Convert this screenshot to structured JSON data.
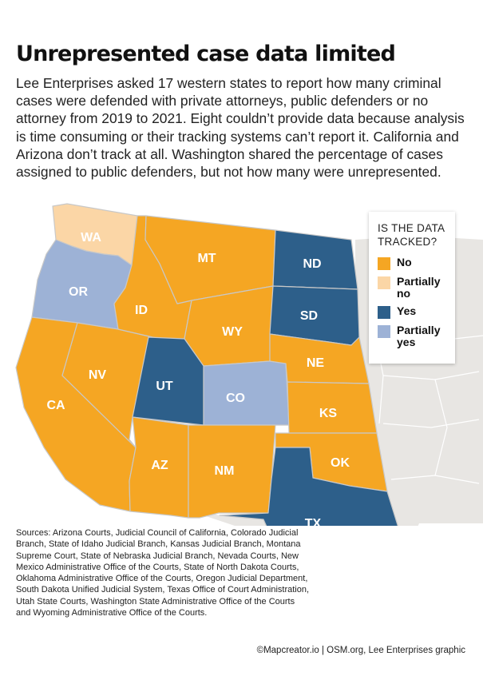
{
  "title": "Unrepresented case data limited",
  "intro": "Lee Enterprises asked 17 western states to report how many criminal cases were defended with private attorneys, public defenders or no attorney from 2019 to 2021. Eight couldn’t provide data because analysis is time consuming or their tracking systems can’t report it. California and Arizona don’t track at all. Washington shared the percentage of cases assigned to public defenders, but not how many were unrepresented.",
  "legend": {
    "title": "IS THE DATA TRACKED?",
    "items": [
      {
        "key": "no",
        "label": "No",
        "color": "#f5a623"
      },
      {
        "key": "partially_no",
        "label": "Partially no",
        "color": "#fbd6a6"
      },
      {
        "key": "yes",
        "label": "Yes",
        "color": "#2d5f8a"
      },
      {
        "key": "partially_yes",
        "label": "Partially yes",
        "color": "#9db2d6"
      }
    ]
  },
  "states": [
    {
      "abbr": "WA",
      "category": "partially_no"
    },
    {
      "abbr": "OR",
      "category": "partially_yes"
    },
    {
      "abbr": "CA",
      "category": "no"
    },
    {
      "abbr": "NV",
      "category": "no"
    },
    {
      "abbr": "ID",
      "category": "no"
    },
    {
      "abbr": "MT",
      "category": "no"
    },
    {
      "abbr": "WY",
      "category": "no"
    },
    {
      "abbr": "UT",
      "category": "yes"
    },
    {
      "abbr": "CO",
      "category": "partially_yes"
    },
    {
      "abbr": "AZ",
      "category": "no"
    },
    {
      "abbr": "NM",
      "category": "no"
    },
    {
      "abbr": "ND",
      "category": "yes"
    },
    {
      "abbr": "SD",
      "category": "yes"
    },
    {
      "abbr": "NE",
      "category": "no"
    },
    {
      "abbr": "KS",
      "category": "no"
    },
    {
      "abbr": "OK",
      "category": "no"
    },
    {
      "abbr": "TX",
      "category": "yes"
    }
  ],
  "sources": "Sources: Arizona Courts, Judicial Council of California, Colorado Judicial Branch, State of Idaho Judicial Branch, Kansas Judicial Branch, Montana Supreme Court, State of Nebraska Judicial Branch, Nevada Courts, New Mexico Administrative Office of the Courts, State of North Dakota Courts, Oklahoma Administrative Office of the Courts, Oregon Judicial Department, South Dakota Unified Judicial System, Texas Office of Court Administration, Utah State Courts, Washington State Administrative Office of the Courts and Wyoming Administrative Office of the Courts.",
  "credit": "©Mapcreator.io | OSM.org, Lee Enterprises graphic",
  "colors": {
    "border": "#c8c8c8",
    "background_land": "#e8e6e3"
  }
}
